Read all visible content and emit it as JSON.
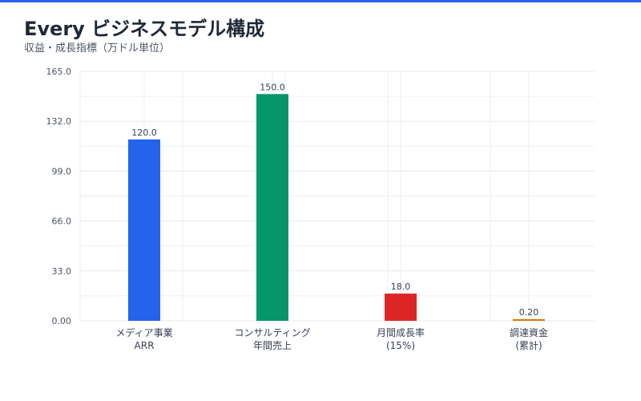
{
  "accent_color": "#2563eb",
  "header": {
    "title": "Every ビジネスモデル構成",
    "subtitle": "収益・成長指標（万ドル単位）"
  },
  "chart_data": {
    "type": "bar",
    "categories": [
      [
        "メディア事業",
        "ARR"
      ],
      [
        "コンサルティング",
        "年間売上"
      ],
      [
        "月間成長率",
        "(15%)"
      ],
      [
        "調達資金",
        "(累計)"
      ]
    ],
    "values": [
      120.0,
      150.0,
      18.0,
      0.2
    ],
    "value_labels": [
      "120.0",
      "150.0",
      "18.0",
      "0.20"
    ],
    "colors": [
      "#2563eb",
      "#059669",
      "#dc2626",
      "#d97706"
    ],
    "ylim": [
      0,
      165
    ],
    "yticks": [
      0,
      33,
      66,
      99,
      132,
      165
    ],
    "ytick_labels": [
      "0.00",
      "33.0",
      "66.0",
      "99.0",
      "132.0",
      "165.0"
    ],
    "grid": true,
    "legend": "none"
  }
}
